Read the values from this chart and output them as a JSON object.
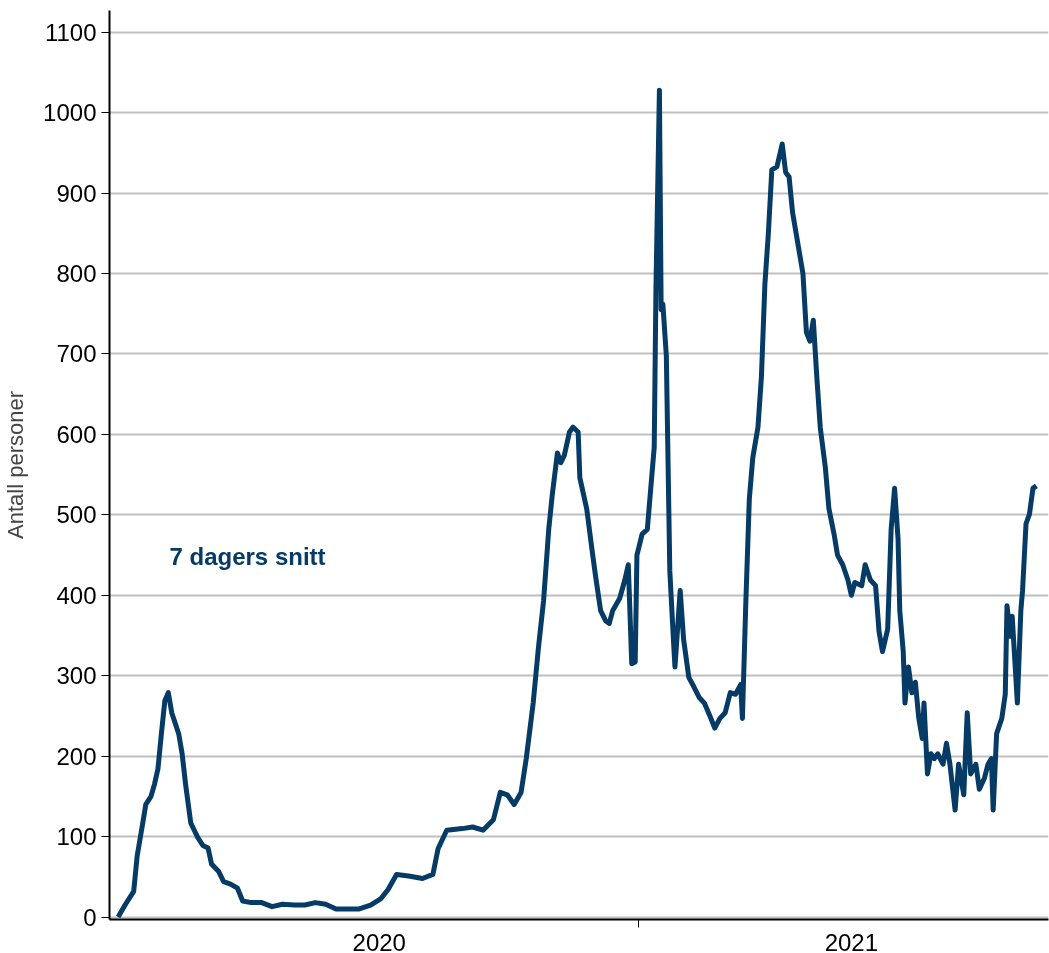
{
  "chart_data": {
    "type": "line",
    "ylabel": "Antall personer",
    "grid": "y",
    "legend": false,
    "marker": "none",
    "line_style": "solid",
    "xlim": [
      "2020-03-01",
      "2021-08-26"
    ],
    "ylim": [
      -3,
      1127
    ],
    "xticks": [
      {
        "value": "2020-08-04",
        "label": "2020"
      },
      {
        "value": "2021-01-01",
        "label": null
      },
      {
        "value": "2021-05-04",
        "label": "2021"
      }
    ],
    "yticks": [
      0,
      100,
      200,
      300,
      400,
      500,
      600,
      700,
      800,
      900,
      1000,
      1100
    ],
    "series": [
      {
        "name": "7 dagers snitt",
        "color": "#053b64",
        "x": [
          "2020-03-06",
          "2020-03-10",
          "2020-03-15",
          "2020-03-17",
          "2020-03-20",
          "2020-03-22",
          "2020-03-25",
          "2020-03-27",
          "2020-03-29",
          "2020-03-31",
          "2020-04-02",
          "2020-04-04",
          "2020-04-06",
          "2020-04-10",
          "2020-04-12",
          "2020-04-14",
          "2020-04-17",
          "2020-04-21",
          "2020-04-24",
          "2020-04-27",
          "2020-04-29",
          "2020-05-03",
          "2020-05-06",
          "2020-05-10",
          "2020-05-14",
          "2020-05-17",
          "2020-05-22",
          "2020-05-28",
          "2020-06-03",
          "2020-06-09",
          "2020-06-16",
          "2020-06-22",
          "2020-06-28",
          "2020-07-04",
          "2020-07-10",
          "2020-07-16",
          "2020-07-23",
          "2020-07-30",
          "2020-08-05",
          "2020-08-09",
          "2020-08-14",
          "2020-08-21",
          "2020-08-29",
          "2020-09-04",
          "2020-09-07",
          "2020-09-12",
          "2020-09-21",
          "2020-09-27",
          "2020-10-03",
          "2020-10-09",
          "2020-10-13",
          "2020-10-17",
          "2020-10-21",
          "2020-10-25",
          "2020-10-28",
          "2020-11-01",
          "2020-11-04",
          "2020-11-07",
          "2020-11-10",
          "2020-11-12",
          "2020-11-15",
          "2020-11-17",
          "2020-11-19",
          "2020-11-22",
          "2020-11-24",
          "2020-11-27",
          "2020-11-28",
          "2020-12-02",
          "2020-12-05",
          "2020-12-07",
          "2020-12-10",
          "2020-12-13",
          "2020-12-15",
          "2020-12-17",
          "2020-12-21",
          "2020-12-24",
          "2020-12-26",
          "2020-12-28",
          "2020-12-30",
          "2020-12-31",
          "2021-01-03",
          "2021-01-06",
          "2021-01-08",
          "2021-01-10",
          "2021-01-11",
          "2021-01-13",
          "2021-01-14",
          "2021-01-15",
          "2021-01-17",
          "2021-01-18",
          "2021-01-19",
          "2021-01-21",
          "2021-01-22",
          "2021-01-25",
          "2021-01-27",
          "2021-01-30",
          "2021-02-02",
          "2021-02-05",
          "2021-02-08",
          "2021-02-11",
          "2021-02-14",
          "2021-02-17",
          "2021-02-20",
          "2021-02-23",
          "2021-02-26",
          "2021-03-01",
          "2021-03-02",
          "2021-03-04",
          "2021-03-06",
          "2021-03-08",
          "2021-03-11",
          "2021-03-13",
          "2021-03-15",
          "2021-03-17",
          "2021-03-19",
          "2021-03-22",
          "2021-03-25",
          "2021-03-27",
          "2021-03-29",
          "2021-03-31",
          "2021-04-03",
          "2021-04-06",
          "2021-04-08",
          "2021-04-10",
          "2021-04-12",
          "2021-04-14",
          "2021-04-16",
          "2021-04-19",
          "2021-04-21",
          "2021-04-24",
          "2021-04-26",
          "2021-04-29",
          "2021-05-02",
          "2021-05-04",
          "2021-05-06",
          "2021-05-10",
          "2021-05-12",
          "2021-05-15",
          "2021-05-18",
          "2021-05-20",
          "2021-05-22",
          "2021-05-25",
          "2021-05-27",
          "2021-05-29",
          "2021-05-31",
          "2021-06-01",
          "2021-06-03",
          "2021-06-04",
          "2021-06-06",
          "2021-06-08",
          "2021-06-10",
          "2021-06-12",
          "2021-06-14",
          "2021-06-15",
          "2021-06-17",
          "2021-06-19",
          "2021-06-21",
          "2021-06-23",
          "2021-06-26",
          "2021-06-28",
          "2021-06-30",
          "2021-07-03",
          "2021-07-05",
          "2021-07-08",
          "2021-07-10",
          "2021-07-12",
          "2021-07-15",
          "2021-07-17",
          "2021-07-20",
          "2021-07-22",
          "2021-07-24",
          "2021-07-25",
          "2021-07-27",
          "2021-07-30",
          "2021-08-01",
          "2021-08-02",
          "2021-08-04",
          "2021-08-05",
          "2021-08-08",
          "2021-08-10",
          "2021-08-11",
          "2021-08-13",
          "2021-08-15",
          "2021-08-17",
          "2021-08-19"
        ],
        "values": [
          0,
          15,
          32,
          76,
          114,
          140,
          150,
          165,
          184,
          228,
          269,
          279,
          254,
          228,
          203,
          165,
          117,
          99,
          89,
          86,
          66,
          57,
          44,
          41,
          36,
          20,
          18,
          18,
          13,
          16,
          15,
          15,
          18,
          16,
          10,
          10,
          10,
          15,
          23,
          34,
          53,
          51,
          48,
          53,
          85,
          108,
          110,
          112,
          108,
          121,
          155,
          152,
          140,
          155,
          197,
          266,
          334,
          393,
          482,
          524,
          577,
          565,
          574,
          603,
          609,
          603,
          546,
          507,
          457,
          425,
          381,
          368,
          365,
          381,
          396,
          419,
          438,
          315,
          317,
          450,
          476,
          482,
          533,
          584,
          781,
          1028,
          755,
          762,
          698,
          565,
          431,
          349,
          311,
          406,
          345,
          298,
          286,
          273,
          266,
          251,
          235,
          247,
          254,
          279,
          277,
          289,
          247,
          393,
          520,
          571,
          609,
          672,
          787,
          850,
          929,
          933,
          961,
          926,
          920,
          876,
          838,
          800,
          727,
          716,
          742,
          672,
          609,
          558,
          508,
          476,
          450,
          438,
          419,
          400,
          416,
          412,
          438,
          419,
          412,
          355,
          330,
          358,
          482,
          533,
          470,
          381,
          330,
          266,
          311,
          279,
          292,
          247,
          222,
          266,
          178,
          203,
          197,
          203,
          190,
          216,
          190,
          133,
          190,
          152,
          254,
          178,
          190,
          159,
          173,
          190,
          197,
          133,
          228,
          247,
          277,
          387,
          349,
          374,
          266,
          381,
          406,
          489,
          501,
          533,
          536
        ]
      }
    ]
  }
}
